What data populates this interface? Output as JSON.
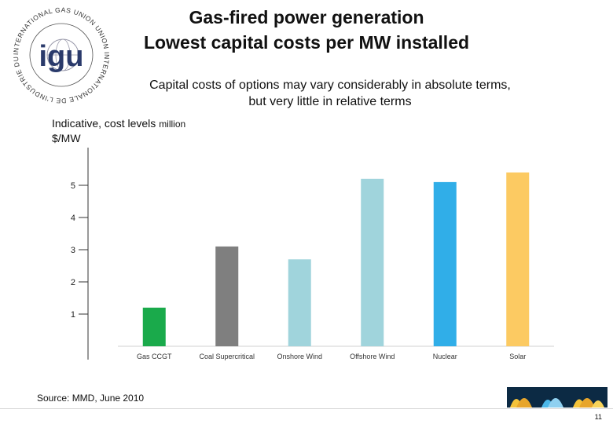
{
  "header": {
    "title_line1": "Gas-fired power generation",
    "title_line2": "Lowest capital costs per MW installed",
    "subtitle": "Capital costs of options may vary considerably in absolute terms,\nbut very little in relative terms"
  },
  "logo": {
    "text": "INTERNATIONAL GAS UNION UNION INTERNATIONALE DE L'INDUSTRIE DU GAZ"
  },
  "chart_label": {
    "main": "Indicative, cost levels",
    "small": "million",
    "unit": "$/MW"
  },
  "chart_data": {
    "type": "bar",
    "title": "",
    "xlabel": "",
    "ylabel": "Indicative, cost levels million $/MW",
    "categories": [
      "Gas CCGT",
      "Coal Supercritical",
      "Onshore Wind",
      "Offshore Wind",
      "Nuclear",
      "Solar"
    ],
    "values": [
      1.2,
      3.1,
      2.7,
      5.2,
      5.1,
      5.4
    ],
    "colors": [
      "#1aaa4b",
      "#7f7f7f",
      "#a0d4dc",
      "#a0d4dc",
      "#30aee8",
      "#fcca62"
    ],
    "yticks": [
      1,
      2,
      3,
      4,
      5
    ],
    "ylim": [
      0,
      6.5
    ],
    "grid": false
  },
  "footer": {
    "source": "Source: MMD, June 2010",
    "page_number": "11"
  }
}
